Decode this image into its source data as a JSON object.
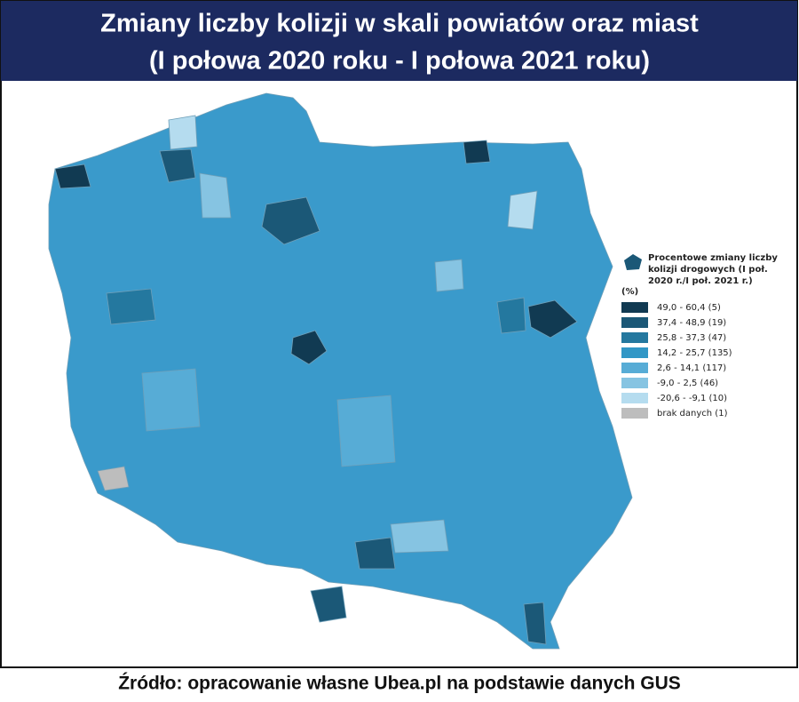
{
  "header": {
    "title_line1": "Zmiany liczby kolizji w skali powiatów oraz miast",
    "title_line2": "(I połowa 2020 roku - I połowa 2021 roku)"
  },
  "legend": {
    "title": [
      "Procentowe zmiany liczby",
      "kolizji drogowych (I poł.",
      "2020 r./I poł. 2021 r.)"
    ],
    "unit": "(%)",
    "items": [
      {
        "label": "49,0 - 60,4 (5)",
        "color": "#113a52"
      },
      {
        "label": "37,4 - 48,9 (19)",
        "color": "#1b5877"
      },
      {
        "label": "25,8 - 37,3 (47)",
        "color": "#24789f"
      },
      {
        "label": "14,2 - 25,7 (135)",
        "color": "#3197c6"
      },
      {
        "label": "2,6 - 14,1 (117)",
        "color": "#57acd6"
      },
      {
        "label": "-9,0 - 2,5 (46)",
        "color": "#86c4e2"
      },
      {
        "label": "-20,6 - -9,1 (10)",
        "color": "#b5dcef"
      },
      {
        "label": "brak danych (1)",
        "color": "#bdbdbd"
      }
    ]
  },
  "source": "Źródło: opracowanie własne Ubea.pl na podstawie danych GUS"
}
